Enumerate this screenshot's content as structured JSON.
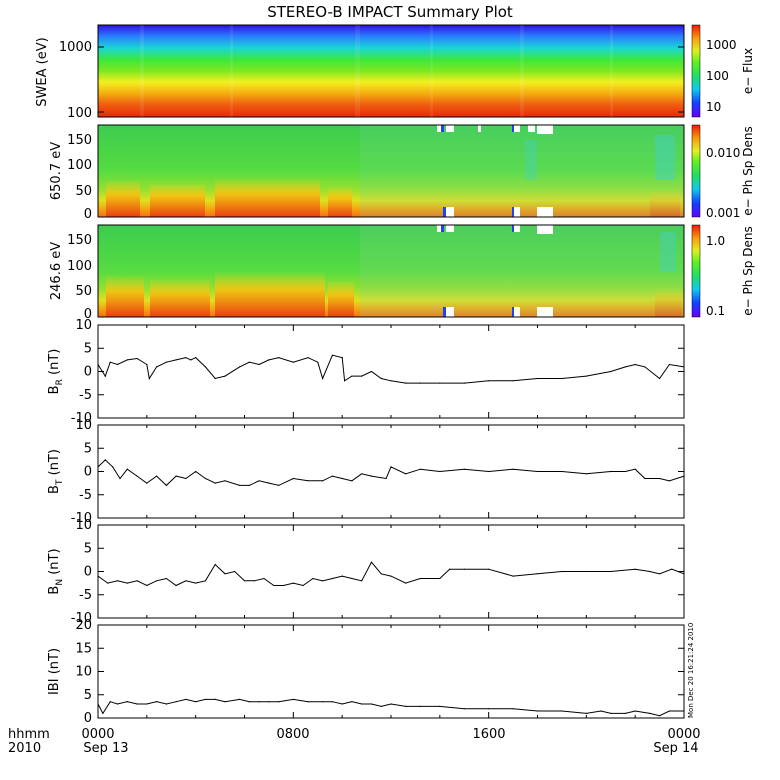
{
  "title": "STEREO-B IMPACT Summary Plot",
  "x_axis": {
    "row1_label": "hhmm",
    "row2_label": "2010",
    "ticks": [
      {
        "time": "0000",
        "date": "Sep 13",
        "hour": 0
      },
      {
        "time": "0800",
        "date": "",
        "hour": 8
      },
      {
        "time": "1600",
        "date": "",
        "hour": 16
      },
      {
        "time": "0000",
        "date": "Sep 14",
        "hour": 24
      }
    ],
    "range_hours": [
      0,
      24
    ]
  },
  "generated_stamp": "Mon Dec 20 16:21:24 2010",
  "spectrograms": [
    {
      "id": "swea",
      "ylabel": "SWEA (eV)",
      "yscale": "log",
      "yticks": [
        "100",
        "1000"
      ],
      "colorbar_label": "e− Flux",
      "colorbar_ticks": [
        "10",
        "100",
        "1000"
      ]
    },
    {
      "id": "pad650",
      "ylabel": "650.7 eV",
      "yticks": [
        "0",
        "50",
        "100",
        "150"
      ],
      "colorbar_label": "e− Ph Sp Dens",
      "colorbar_ticks": [
        "0.001",
        "0.010"
      ]
    },
    {
      "id": "pad246",
      "ylabel": "246.6 eV",
      "yticks": [
        "0",
        "50",
        "100",
        "150"
      ],
      "colorbar_label": "e− Ph Sp Dens",
      "colorbar_ticks": [
        "0.1",
        "1.0"
      ]
    }
  ],
  "chart_data": [
    {
      "type": "line",
      "name": "BR",
      "ylabel_main": "B",
      "ylabel_sub": "R",
      "ylabel_unit": " (nT)",
      "ylim": [
        -10,
        10
      ],
      "yticks": [
        "-10",
        "-5",
        "0",
        "5",
        "10"
      ],
      "x": [
        0,
        0.3,
        0.5,
        0.8,
        1.2,
        1.6,
        2.0,
        2.1,
        2.4,
        2.8,
        3.2,
        3.6,
        3.8,
        4.0,
        4.4,
        4.8,
        5.2,
        5.8,
        6.2,
        6.6,
        7.0,
        7.4,
        8.0,
        8.6,
        9.0,
        9.2,
        9.6,
        10.0,
        10.1,
        10.4,
        10.8,
        11.2,
        11.6,
        12.0,
        12.6,
        13.2,
        14.0,
        15.0,
        16.0,
        17.0,
        18.0,
        19.0,
        20.0,
        21.0,
        21.6,
        22.0,
        22.4,
        23.0,
        23.4,
        24.0
      ],
      "y": [
        1.5,
        -1,
        2,
        1.5,
        2.5,
        2.8,
        1.5,
        -1.5,
        1,
        2,
        2.5,
        3,
        2.5,
        3,
        1,
        -1.5,
        -1,
        1,
        2,
        1.5,
        2.5,
        3,
        2,
        3,
        2,
        -1.5,
        3.5,
        3,
        -2,
        -1,
        -1,
        0,
        -1.5,
        -2,
        -2.5,
        -2.5,
        -2.5,
        -2.5,
        -2,
        -2,
        -1.5,
        -1.5,
        -1,
        0,
        1,
        1.5,
        1,
        -1.5,
        1.5,
        1
      ]
    },
    {
      "type": "line",
      "name": "BT",
      "ylabel_main": "B",
      "ylabel_sub": "T",
      "ylabel_unit": " (nT)",
      "ylim": [
        -10,
        10
      ],
      "yticks": [
        "-10",
        "-5",
        "0",
        "5",
        "10"
      ],
      "x": [
        0,
        0.3,
        0.6,
        0.9,
        1.2,
        1.6,
        2.0,
        2.4,
        2.8,
        3.2,
        3.6,
        4.0,
        4.4,
        4.8,
        5.2,
        5.8,
        6.2,
        6.6,
        7.0,
        7.4,
        8.0,
        8.6,
        9.2,
        9.6,
        10.0,
        10.4,
        10.8,
        11.2,
        11.8,
        12.0,
        12.6,
        13.2,
        14.0,
        15.0,
        16.0,
        17.0,
        18.0,
        19.0,
        20.0,
        21.0,
        21.6,
        22.0,
        22.4,
        23.0,
        23.4,
        24.0
      ],
      "y": [
        1,
        2.5,
        1,
        -1.5,
        0.5,
        -1,
        -2.5,
        -1,
        -3,
        -1,
        -1.5,
        0,
        -1.5,
        -2.5,
        -2,
        -3,
        -3,
        -2,
        -2.5,
        -3,
        -1.5,
        -2,
        -2,
        -1,
        -1.5,
        -2,
        -0.5,
        -1,
        -1.5,
        1,
        -0.5,
        0.5,
        0,
        0.5,
        0,
        0.5,
        0,
        0,
        -0.5,
        0,
        0,
        0.5,
        -1.5,
        -1.5,
        -2,
        -1
      ]
    },
    {
      "type": "line",
      "name": "BN",
      "ylabel_main": "B",
      "ylabel_sub": "N",
      "ylabel_unit": " (nT)",
      "ylim": [
        -10,
        10
      ],
      "yticks": [
        "-10",
        "-5",
        "0",
        "5",
        "10"
      ],
      "x": [
        0,
        0.4,
        0.8,
        1.2,
        1.6,
        2.0,
        2.4,
        2.8,
        3.2,
        3.6,
        4.0,
        4.4,
        4.8,
        5.2,
        5.6,
        6.0,
        6.4,
        6.8,
        7.2,
        7.6,
        8.0,
        8.4,
        8.8,
        9.2,
        9.6,
        10.0,
        10.4,
        10.8,
        11.2,
        11.6,
        12.0,
        12.6,
        13.2,
        14.0,
        14.4,
        15.0,
        16.0,
        17.0,
        18.0,
        19.0,
        20.0,
        21.0,
        22.0,
        22.6,
        23.0,
        23.5,
        24.0
      ],
      "y": [
        -1,
        -2.5,
        -2,
        -2.5,
        -2,
        -3,
        -2,
        -1.5,
        -3,
        -2,
        -2.5,
        -2,
        1.5,
        -0.5,
        0,
        -2,
        -2,
        -1.5,
        -3,
        -3,
        -2.5,
        -3,
        -1.5,
        -2,
        -1.5,
        -1,
        -1.5,
        -2,
        2,
        -0.5,
        -1,
        -2.5,
        -1.5,
        -1.5,
        0.5,
        0.5,
        0.5,
        -1,
        -0.5,
        0,
        0,
        0,
        0.5,
        0,
        -0.5,
        0.5,
        -0.5
      ]
    },
    {
      "type": "line",
      "name": "|B|",
      "ylabel_main": "IBI",
      "ylabel_sub": "",
      "ylabel_unit": " (nT)",
      "ylim": [
        0,
        20
      ],
      "yticks": [
        "0",
        "5",
        "10",
        "15",
        "20"
      ],
      "x": [
        0,
        0.2,
        0.5,
        0.8,
        1.2,
        1.6,
        2.0,
        2.4,
        2.8,
        3.2,
        3.6,
        4.0,
        4.4,
        4.8,
        5.2,
        5.8,
        6.2,
        6.6,
        7.0,
        7.4,
        8.0,
        8.6,
        9.2,
        9.6,
        10.0,
        10.4,
        10.8,
        11.2,
        11.6,
        12.0,
        12.6,
        13.2,
        14.0,
        15.0,
        16.0,
        17.0,
        18.0,
        19.0,
        20.0,
        20.6,
        21.0,
        21.6,
        22.0,
        22.6,
        23.0,
        23.4,
        24.0
      ],
      "y": [
        3,
        1,
        3.5,
        3,
        3.5,
        3,
        3,
        3.5,
        3,
        3.5,
        4,
        3.5,
        4,
        4,
        3.5,
        4,
        3.5,
        3.5,
        3.5,
        3.5,
        4,
        3.5,
        3.5,
        3.5,
        3,
        3.5,
        3,
        3,
        2.5,
        3,
        2.5,
        2.5,
        2.5,
        2,
        2,
        2,
        1.5,
        1.5,
        1,
        1.5,
        1,
        1,
        1.5,
        1,
        0.5,
        1.5,
        1.5
      ]
    }
  ]
}
